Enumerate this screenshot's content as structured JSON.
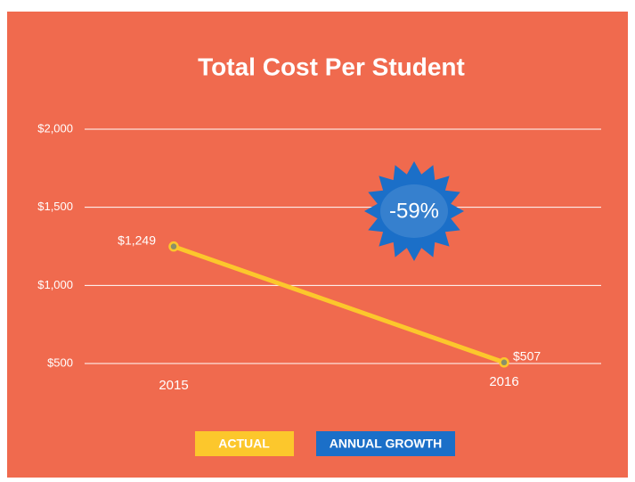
{
  "chart_data": {
    "type": "line",
    "title": "Total Cost Per Student",
    "categories": [
      "2015",
      "2016"
    ],
    "series": [
      {
        "name": "ACTUAL",
        "color": "#fcc72c",
        "values": [
          1249,
          507
        ],
        "value_labels": [
          "$1,249",
          "$507"
        ]
      }
    ],
    "ylim": [
      500,
      2000
    ],
    "yticks": [
      {
        "value": 500,
        "label": "$500"
      },
      {
        "value": 1000,
        "label": "$1,000"
      },
      {
        "value": 1500,
        "label": "$1,500"
      },
      {
        "value": 2000,
        "label": "$2,000"
      }
    ],
    "grid": true,
    "annotation": {
      "label": "ANNUAL GROWTH",
      "text": "-59%",
      "color": "#1b6fc8"
    }
  }
}
